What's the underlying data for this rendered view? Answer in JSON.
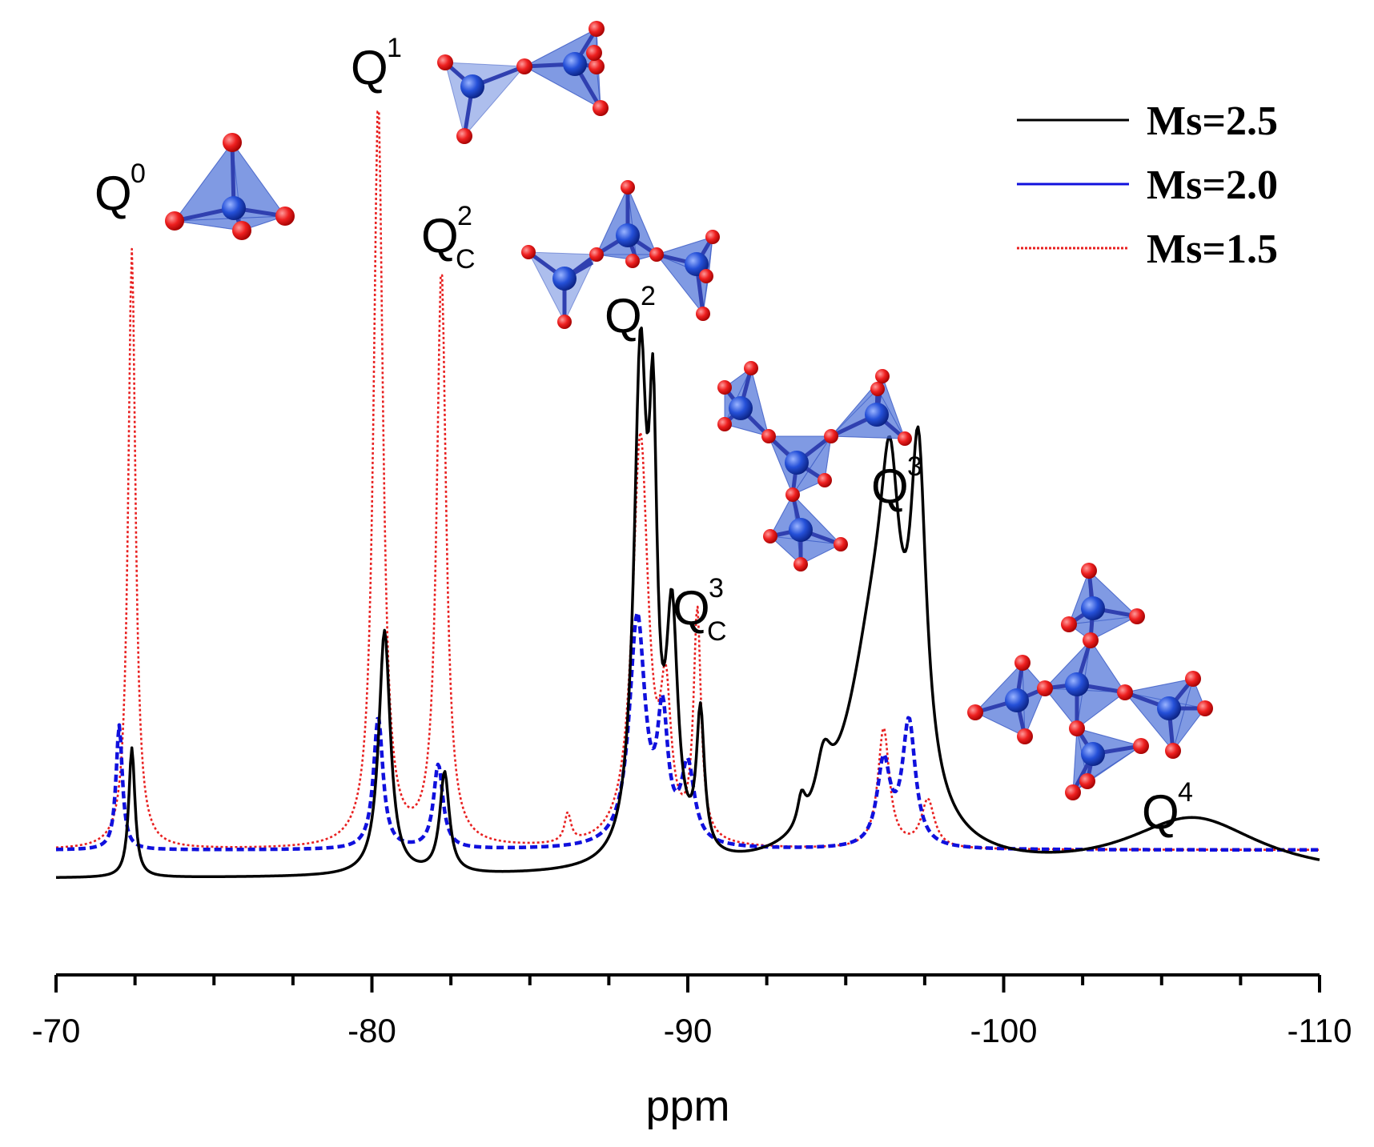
{
  "chart_data": {
    "type": "line",
    "title": "",
    "xlabel": "ppm",
    "ylabel": "",
    "xlim": [
      -70,
      -110
    ],
    "xticks": [
      -70,
      -80,
      -90,
      -100,
      -110
    ],
    "xtick_labels": [
      "-70",
      "-80",
      "-90",
      "-100",
      "-110"
    ],
    "grid": false,
    "legend_position": "top-right",
    "series": [
      {
        "name": "Ms=2.5",
        "color": "#000000",
        "style": "solid",
        "baseline": 0,
        "peaks": [
          {
            "x": -72.4,
            "height": 0.54,
            "width": 0.12
          },
          {
            "x": -80.4,
            "height": 1.02,
            "width": 0.22
          },
          {
            "x": -82.3,
            "height": 0.42,
            "width": 0.18
          },
          {
            "x": -88.5,
            "height": 2.04,
            "width": 0.25
          },
          {
            "x": -88.9,
            "height": 1.45,
            "width": 0.15
          },
          {
            "x": -89.5,
            "height": 0.95,
            "width": 0.22
          },
          {
            "x": -90.4,
            "height": 0.58,
            "width": 0.15
          },
          {
            "x": -93.6,
            "height": 0.12,
            "width": 0.15
          },
          {
            "x": -94.3,
            "height": 0.22,
            "width": 0.3
          },
          {
            "x": -96.0,
            "height": 1.0,
            "width": 1.1
          },
          {
            "x": -96.4,
            "height": 0.8,
            "width": 0.35
          },
          {
            "x": -97.3,
            "height": 1.33,
            "width": 0.3
          },
          {
            "x": -106.0,
            "height": 0.24,
            "width": 2.6
          }
        ]
      },
      {
        "name": "Ms=2.0",
        "color": "#1010dd",
        "style": "dashed",
        "baseline": 0.12,
        "peaks": [
          {
            "x": -72.0,
            "height": 0.52,
            "width": 0.12
          },
          {
            "x": -80.2,
            "height": 0.55,
            "width": 0.18
          },
          {
            "x": -82.1,
            "height": 0.35,
            "width": 0.18
          },
          {
            "x": -88.4,
            "height": 0.95,
            "width": 0.3
          },
          {
            "x": -89.2,
            "height": 0.5,
            "width": 0.2
          },
          {
            "x": -90.0,
            "height": 0.32,
            "width": 0.25
          },
          {
            "x": -96.2,
            "height": 0.35,
            "width": 0.25
          },
          {
            "x": -97.0,
            "height": 0.52,
            "width": 0.25
          }
        ]
      },
      {
        "name": "Ms=1.5",
        "color": "#e82020",
        "style": "dotted",
        "baseline": 0.12,
        "peaks": [
          {
            "x": -72.4,
            "height": 2.5,
            "width": 0.14
          },
          {
            "x": -80.2,
            "height": 3.1,
            "width": 0.18
          },
          {
            "x": -82.2,
            "height": 2.4,
            "width": 0.18
          },
          {
            "x": -86.2,
            "height": 0.12,
            "width": 0.12
          },
          {
            "x": -88.5,
            "height": 1.7,
            "width": 0.3
          },
          {
            "x": -89.3,
            "height": 0.55,
            "width": 0.2
          },
          {
            "x": -90.3,
            "height": 0.95,
            "width": 0.14
          },
          {
            "x": -96.2,
            "height": 0.5,
            "width": 0.22
          },
          {
            "x": -97.6,
            "height": 0.2,
            "width": 0.25
          }
        ]
      }
    ],
    "annotations": [
      {
        "base": "Q",
        "sup": "0",
        "sub": "",
        "x": -72.5
      },
      {
        "base": "Q",
        "sup": "1",
        "sub": "",
        "x": -80.3
      },
      {
        "base": "Q",
        "sup": "2",
        "sub": "C",
        "x": -82.4
      },
      {
        "base": "Q",
        "sup": "2",
        "sub": "",
        "x": -88.3
      },
      {
        "base": "Q",
        "sup": "3",
        "sub": "C",
        "x": -90.2
      },
      {
        "base": "Q",
        "sup": "3",
        "sub": "",
        "x": -97.1
      },
      {
        "base": "Q",
        "sup": "4",
        "sub": "",
        "x": -105.1
      }
    ]
  },
  "colors": {
    "tetra_fill": "#4a6fd8",
    "silicon": "#2a4fd0",
    "oxygen": "#e81818"
  }
}
